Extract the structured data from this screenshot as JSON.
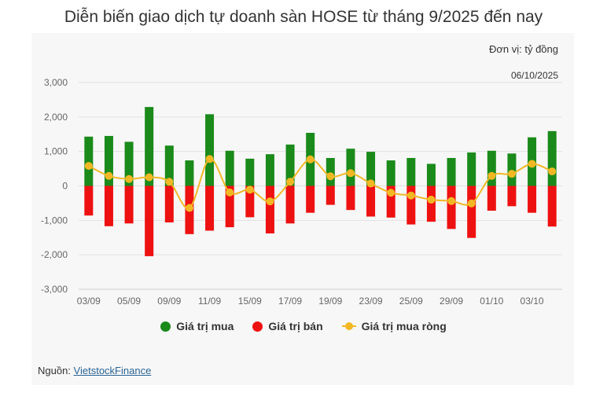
{
  "title": "Diễn biến giao dịch tự doanh sàn HOSE từ tháng 9/2025 đến nay",
  "unit_label": "Đơn vị: tỷ đồng",
  "date_label": "06/10/2025",
  "source": {
    "label": "Nguồn: ",
    "link_text": "VietstockFinance"
  },
  "colors": {
    "buy": "#1a8a1a",
    "sell": "#ee1111",
    "net": "#f2b824",
    "grid": "#e2e2e2",
    "tick": "#666666"
  },
  "chart_data": {
    "type": "bar",
    "title": "Diễn biến giao dịch tự doanh sàn HOSE từ tháng 9/2025 đến nay",
    "ylim": [
      -3000,
      3000
    ],
    "yticks": [
      3000,
      2000,
      1000,
      0,
      -1000,
      -2000,
      -3000
    ],
    "ytick_labels": [
      "3,000",
      "2,000",
      "1,000",
      "0",
      "-1,000",
      "-2,000",
      "-3,000"
    ],
    "categories": [
      "03/09",
      "04/09",
      "05/09",
      "08/09",
      "09/09",
      "10/09",
      "11/09",
      "12/09",
      "15/09",
      "16/09",
      "17/09",
      "18/09",
      "19/09",
      "22/09",
      "23/09",
      "24/09",
      "25/09",
      "26/09",
      "29/09",
      "30/09",
      "01/10",
      "02/10",
      "03/10",
      "06/10"
    ],
    "xtick_labels": [
      "03/09",
      "05/09",
      "09/09",
      "11/09",
      "15/09",
      "17/09",
      "19/09",
      "23/09",
      "25/09",
      "29/09",
      "01/10",
      "03/10"
    ],
    "series": [
      {
        "name": "Giá trị mua",
        "type": "bar",
        "values": [
          1430,
          1450,
          1280,
          2290,
          1170,
          740,
          2080,
          1020,
          790,
          920,
          1200,
          1540,
          810,
          1080,
          990,
          740,
          810,
          640,
          810,
          970,
          1020,
          940,
          1410,
          1590
        ]
      },
      {
        "name": "Giá trị bán",
        "type": "bar",
        "values": [
          -860,
          -1170,
          -1090,
          -2040,
          -1060,
          -1400,
          -1300,
          -1200,
          -910,
          -1380,
          -1090,
          -780,
          -550,
          -700,
          -890,
          -920,
          -1120,
          -1040,
          -1250,
          -1510,
          -720,
          -590,
          -780,
          -1180
        ]
      },
      {
        "name": "Giá trị mua ròng",
        "type": "line",
        "values": [
          580,
          290,
          200,
          250,
          120,
          -640,
          780,
          -190,
          -110,
          -450,
          120,
          770,
          280,
          370,
          70,
          -200,
          -280,
          -400,
          -440,
          -510,
          290,
          350,
          640,
          420
        ]
      }
    ],
    "legend": [
      "Giá trị mua",
      "Giá trị bán",
      "Giá trị mua ròng"
    ],
    "legend_position": "bottom",
    "grid": true
  }
}
